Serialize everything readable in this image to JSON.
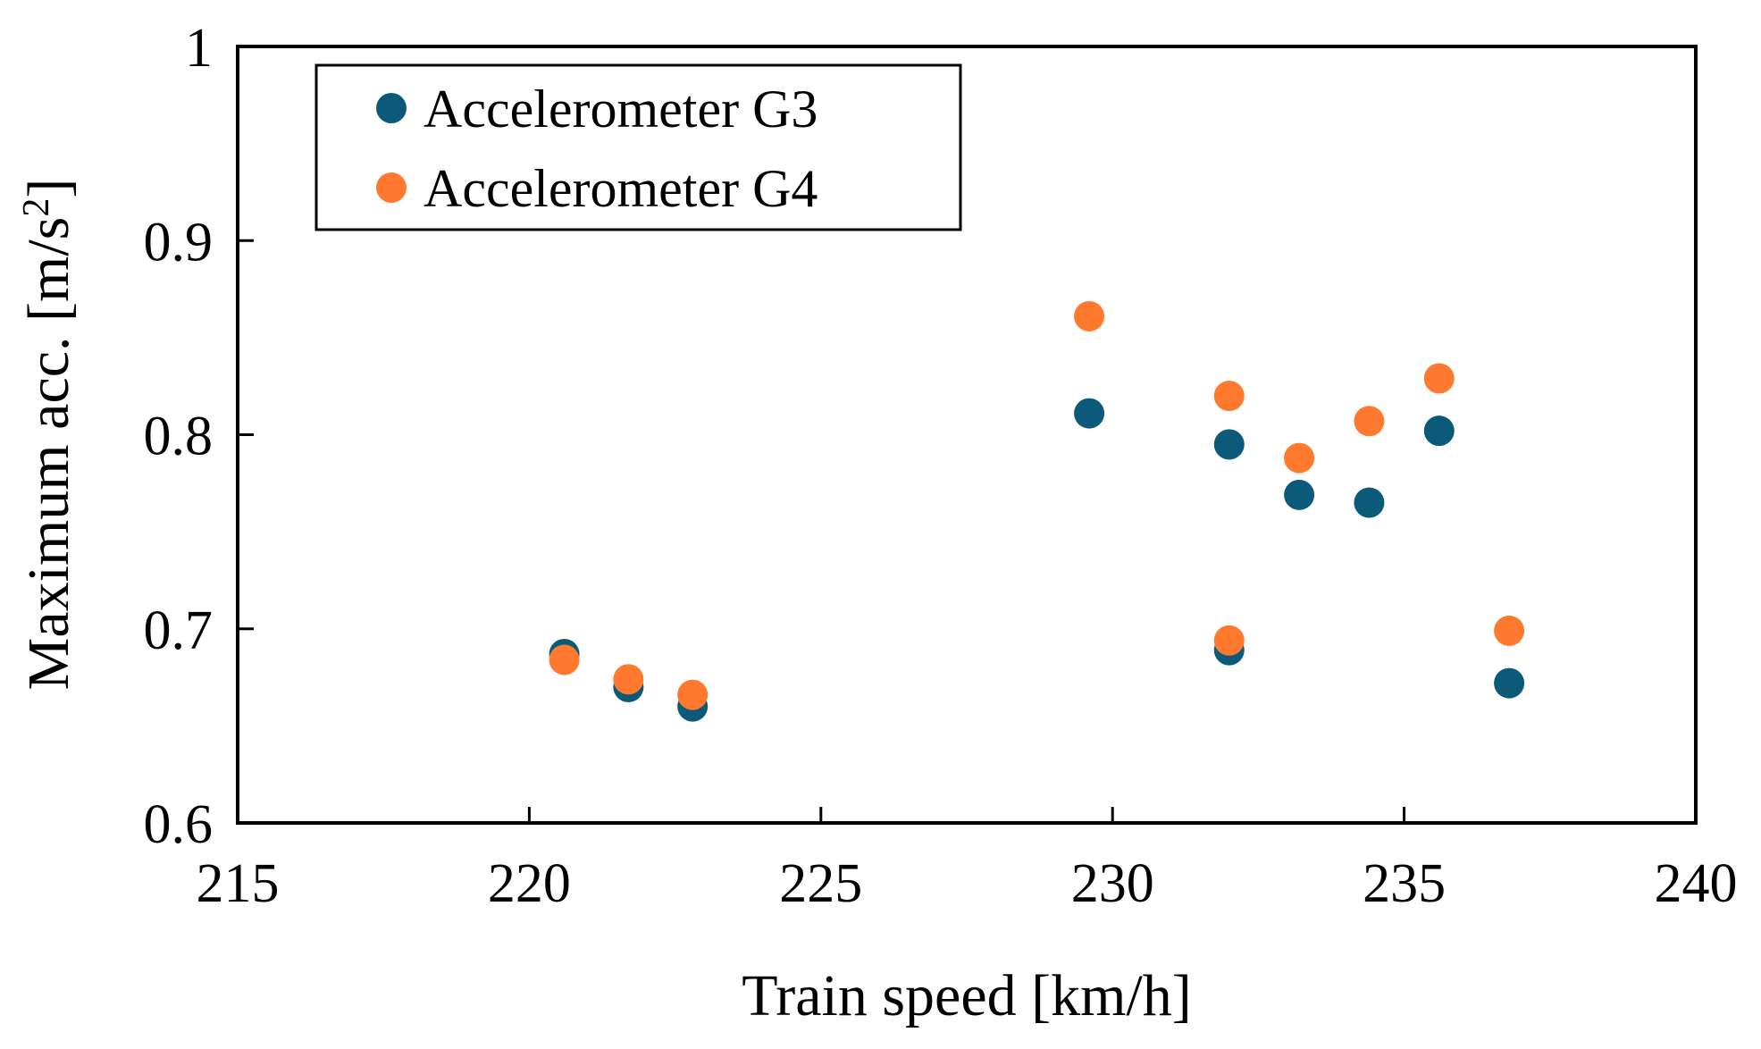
{
  "chart_data": {
    "type": "scatter",
    "title": "",
    "xlabel": "Train speed [km/h]",
    "ylabel_main": "Maximum acc. [m/s",
    "ylabel_sup": "2",
    "ylabel_close": "]",
    "xlim": [
      215,
      240
    ],
    "ylim": [
      0.6,
      1.0
    ],
    "xticks": [
      215,
      220,
      225,
      230,
      235,
      240
    ],
    "yticks": [
      0.6,
      0.7,
      0.8,
      0.9,
      1.0
    ],
    "xtick_labels": [
      "215",
      "220",
      "225",
      "230",
      "235",
      "240"
    ],
    "ytick_labels": [
      "0.6",
      "0.7",
      "0.8",
      "0.9",
      "1"
    ],
    "grid": false,
    "legend_position": "top-left",
    "series": [
      {
        "name": "Accelerometer G3",
        "color": "#0c5a7a",
        "x": [
          220.6,
          221.7,
          222.8,
          229.6,
          232.0,
          232.0,
          233.2,
          234.4,
          235.6,
          236.8
        ],
        "y": [
          0.687,
          0.67,
          0.66,
          0.811,
          0.795,
          0.689,
          0.769,
          0.765,
          0.802,
          0.672
        ]
      },
      {
        "name": "Accelerometer G4",
        "color": "#ff7a2e",
        "x": [
          220.6,
          221.7,
          222.8,
          229.6,
          232.0,
          232.0,
          233.2,
          234.4,
          235.6,
          236.8
        ],
        "y": [
          0.684,
          0.674,
          0.666,
          0.861,
          0.82,
          0.694,
          0.788,
          0.807,
          0.829,
          0.699
        ]
      }
    ]
  }
}
